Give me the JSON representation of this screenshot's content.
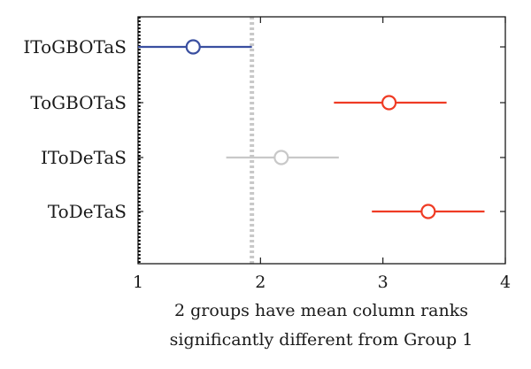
{
  "chart_data": {
    "type": "scatter",
    "subtype": "multiple-comparison-interval-plot",
    "title": "",
    "xlabel_lines": [
      "2 groups have mean column ranks",
      "significantly different from Group 1"
    ],
    "ylabel": "",
    "xlim": [
      1,
      4
    ],
    "xticks": [
      "1",
      "2",
      "3",
      "4"
    ],
    "grid": false,
    "reference_lines": {
      "left_edge_dotted": 1.0,
      "gray_dotted": 1.93
    },
    "groups": [
      {
        "name": "IToGBOTaS",
        "mean": 1.45,
        "lower": 1.0,
        "upper": 1.93,
        "role": "selected"
      },
      {
        "name": "ToGBOTaS",
        "mean": 3.05,
        "lower": 2.6,
        "upper": 3.52,
        "role": "significant"
      },
      {
        "name": "IToDeTaS",
        "mean": 2.17,
        "lower": 1.72,
        "upper": 2.64,
        "role": "not-significant"
      },
      {
        "name": "ToDeTaS",
        "mean": 3.37,
        "lower": 2.91,
        "upper": 3.83,
        "role": "significant"
      }
    ],
    "colors": {
      "selected": "#3a4fa0",
      "significant": "#ef3b24",
      "not-significant": "#c8c8c8",
      "reference": "#c8c8c8",
      "axis": "#1a1a1a"
    }
  }
}
